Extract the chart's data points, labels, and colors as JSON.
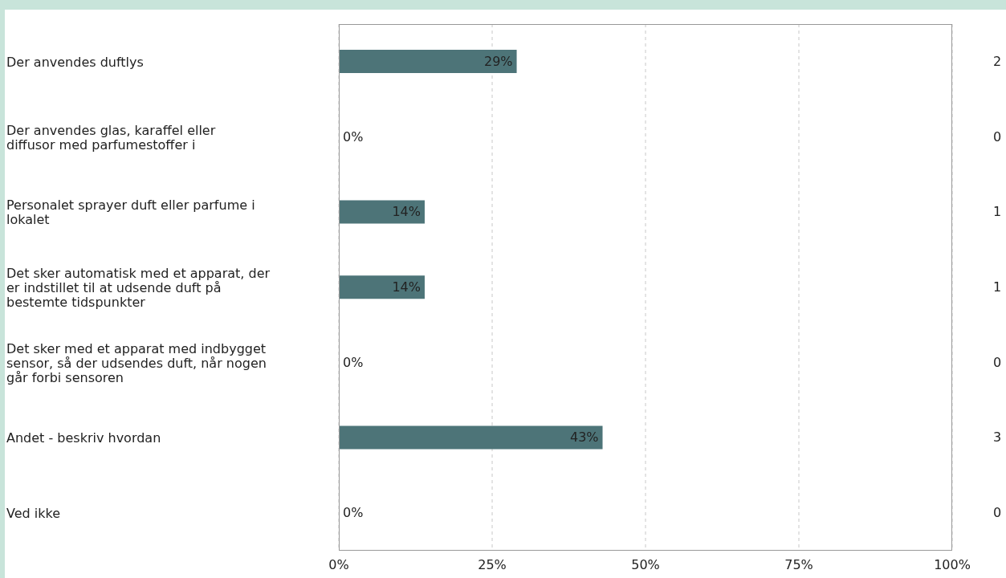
{
  "chart_data": {
    "type": "bar",
    "orientation": "horizontal",
    "categories": [
      "Der anvendes duftlys",
      "Der anvendes glas, karaffel eller diffusor med parfumestoffer i",
      "Personalet sprayer duft eller parfume i lokalet",
      "Det sker automatisk med et apparat, der er indstillet til at udsende duft på bestemte tidspunkter",
      "Det sker med et apparat med indbygget sensor, så der udsendes duft, når nogen går forbi sensoren",
      "Andet - beskriv hvordan",
      "Ved ikke"
    ],
    "values": [
      29,
      0,
      14,
      14,
      0,
      43,
      0
    ],
    "value_labels": [
      "29%",
      "0%",
      "14%",
      "14%",
      "0%",
      "43%",
      "0%"
    ],
    "color": "#4d7478",
    "xlim": [
      0,
      100
    ],
    "xticks": [
      {
        "value": 0,
        "label": "0%"
      },
      {
        "value": 25,
        "label": "25%"
      },
      {
        "value": 50,
        "label": "50%"
      },
      {
        "value": 75,
        "label": "75%"
      },
      {
        "value": 100,
        "label": "100%"
      }
    ],
    "grid": "x",
    "annotations": [
      "2",
      "0",
      "1",
      "1",
      "0",
      "3",
      "0"
    ]
  }
}
